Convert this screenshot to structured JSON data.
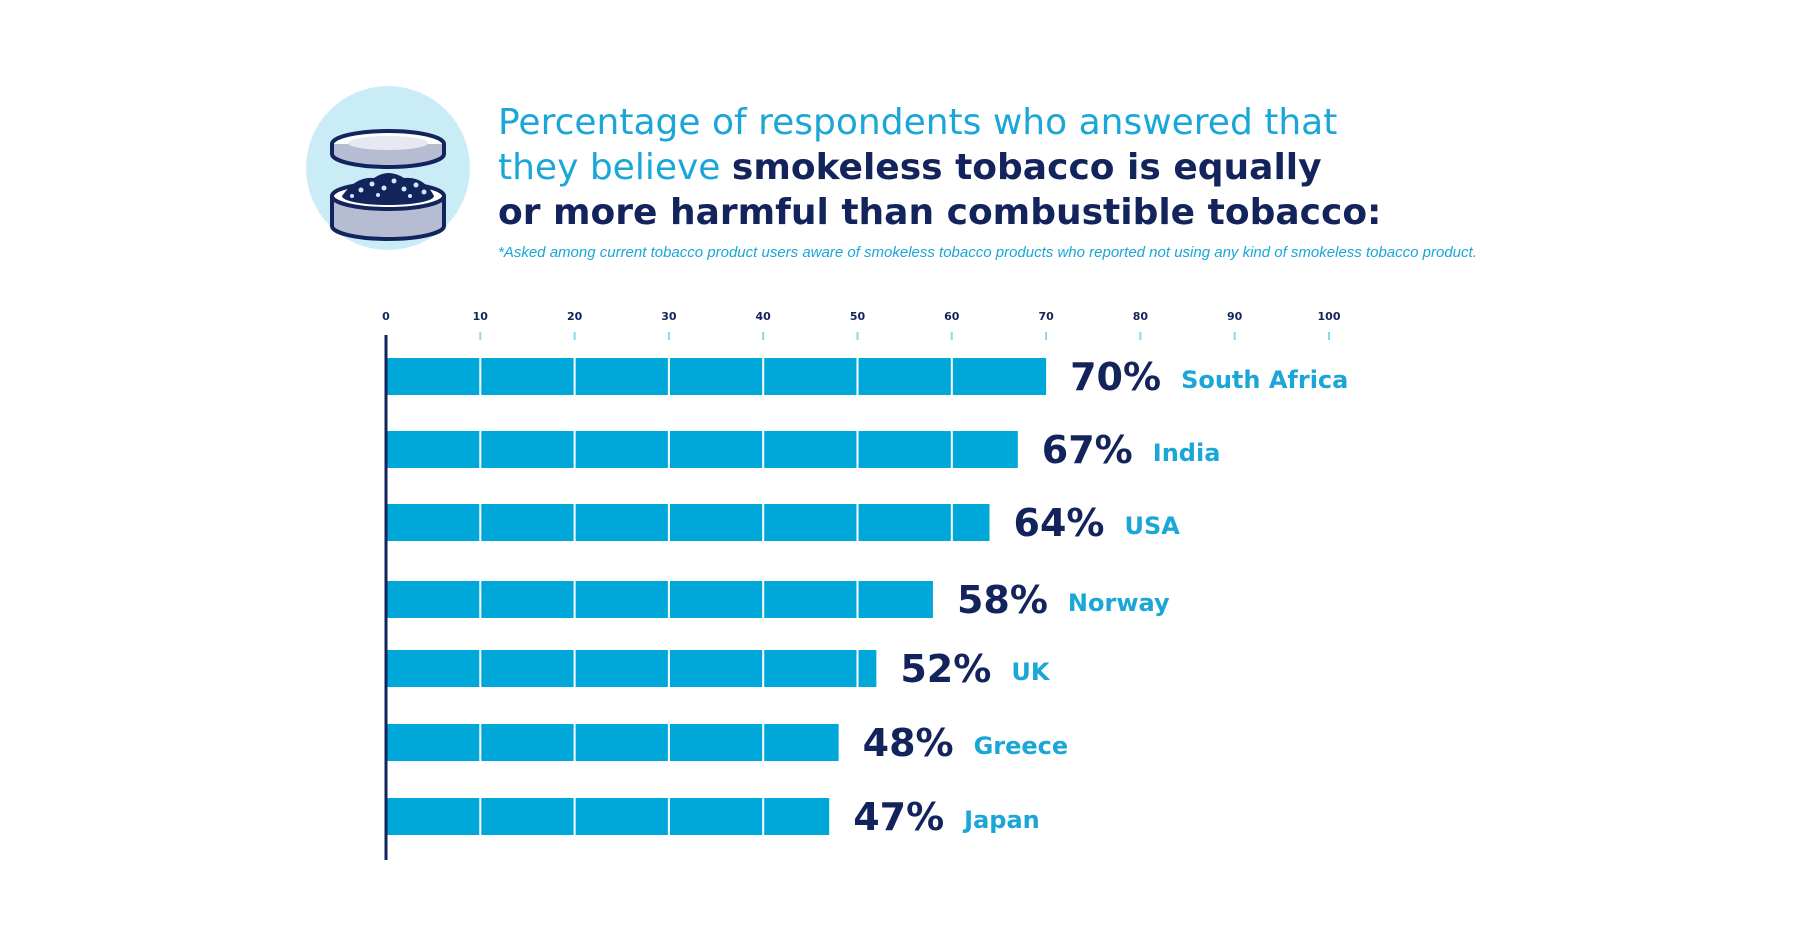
{
  "title": {
    "line1": "Percentage of respondents who answered that",
    "line2_plain": "they believe ",
    "line2_bold": "smokeless tobacco is equally",
    "line3_bold": "or more harmful than combustible tobacco:"
  },
  "footnote": "*Asked among current tobacco product users aware of smokeless tobacco products who reported not using any kind of smokeless tobacco product.",
  "icon": "smokeless-tobacco-tin-icon",
  "colors": {
    "bar": "#00a7d9",
    "title_light": "#1aa6d6",
    "title_dark": "#13235b",
    "icon_circle": "#c9ecf7"
  },
  "chart_data": {
    "type": "bar",
    "orientation": "horizontal",
    "categories": [
      "South Africa",
      "India",
      "USA",
      "Norway",
      "UK",
      "Greece",
      "Japan"
    ],
    "values": [
      70,
      67,
      64,
      58,
      52,
      48,
      47
    ],
    "value_labels": [
      "70%",
      "67%",
      "64%",
      "58%",
      "52%",
      "48%",
      "47%"
    ],
    "xlim": [
      0,
      100
    ],
    "x_ticks": [
      "0",
      "10",
      "20",
      "30",
      "40",
      "50",
      "60",
      "70",
      "80",
      "90",
      "100"
    ],
    "grid": false,
    "legend": "none"
  }
}
